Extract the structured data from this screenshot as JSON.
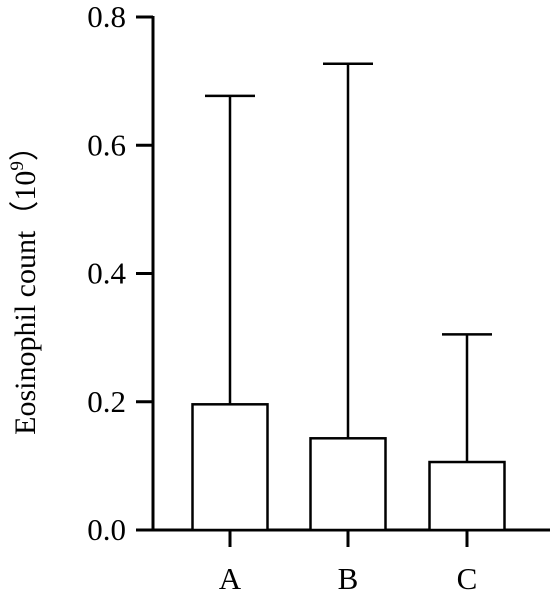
{
  "chart_data": {
    "type": "bar",
    "title": "",
    "xlabel": "",
    "ylabel": "Eosinophil count",
    "ylabel_unit_base": "10",
    "ylabel_unit_exponent": "9",
    "ylabel_open": "（",
    "ylabel_close": "）",
    "categories": [
      "A",
      "B",
      "C"
    ],
    "values": [
      0.196,
      0.143,
      0.106
    ],
    "error_upper": [
      0.677,
      0.727,
      0.305
    ],
    "ylim": [
      0,
      0.8
    ],
    "yticks": [
      0.0,
      0.2,
      0.4,
      0.6,
      0.8
    ],
    "ytick_labels": [
      "0.0",
      "0.2",
      "0.4",
      "0.6",
      "0.8"
    ],
    "grid": false,
    "legend": "none",
    "bar_fill": "#ffffff",
    "stroke_color": "#000000"
  }
}
